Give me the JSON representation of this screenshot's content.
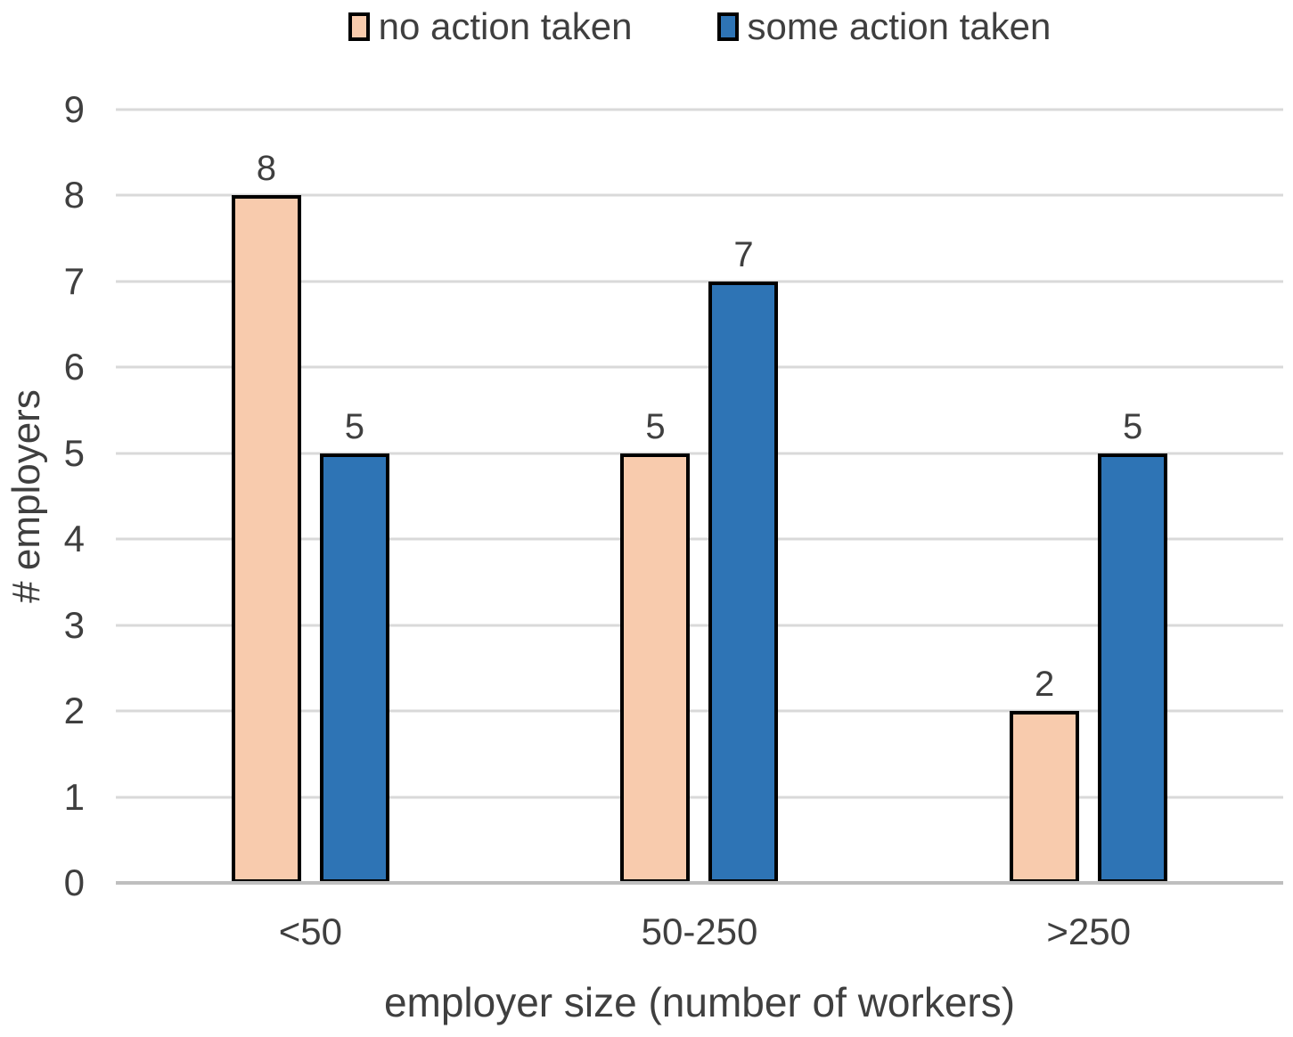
{
  "colors": {
    "grid": "#D9D9D9",
    "baseline": "#BFBFBF",
    "text": "#3F3F3F",
    "bar_border": "#000000",
    "background": "#FFFFFF",
    "series_no_action": "#F8CBAD",
    "series_some_action": "#2E74B5"
  },
  "chart_data": {
    "type": "bar",
    "title": "",
    "categories": [
      "<50",
      "50-250",
      ">250"
    ],
    "series": [
      {
        "name": "no action taken",
        "color": "#F8CBAD",
        "values": [
          8,
          5,
          2
        ]
      },
      {
        "name": "some action taken",
        "color": "#2E74B5",
        "values": [
          5,
          7,
          5
        ]
      }
    ],
    "xlabel": "employer size (number of workers)",
    "ylabel": "# employers",
    "ylim": [
      0,
      9
    ],
    "ytick_step": 1,
    "yticks": [
      0,
      1,
      2,
      3,
      4,
      5,
      6,
      7,
      8,
      9
    ],
    "grid": true,
    "legend_position": "top",
    "data_labels": true
  }
}
